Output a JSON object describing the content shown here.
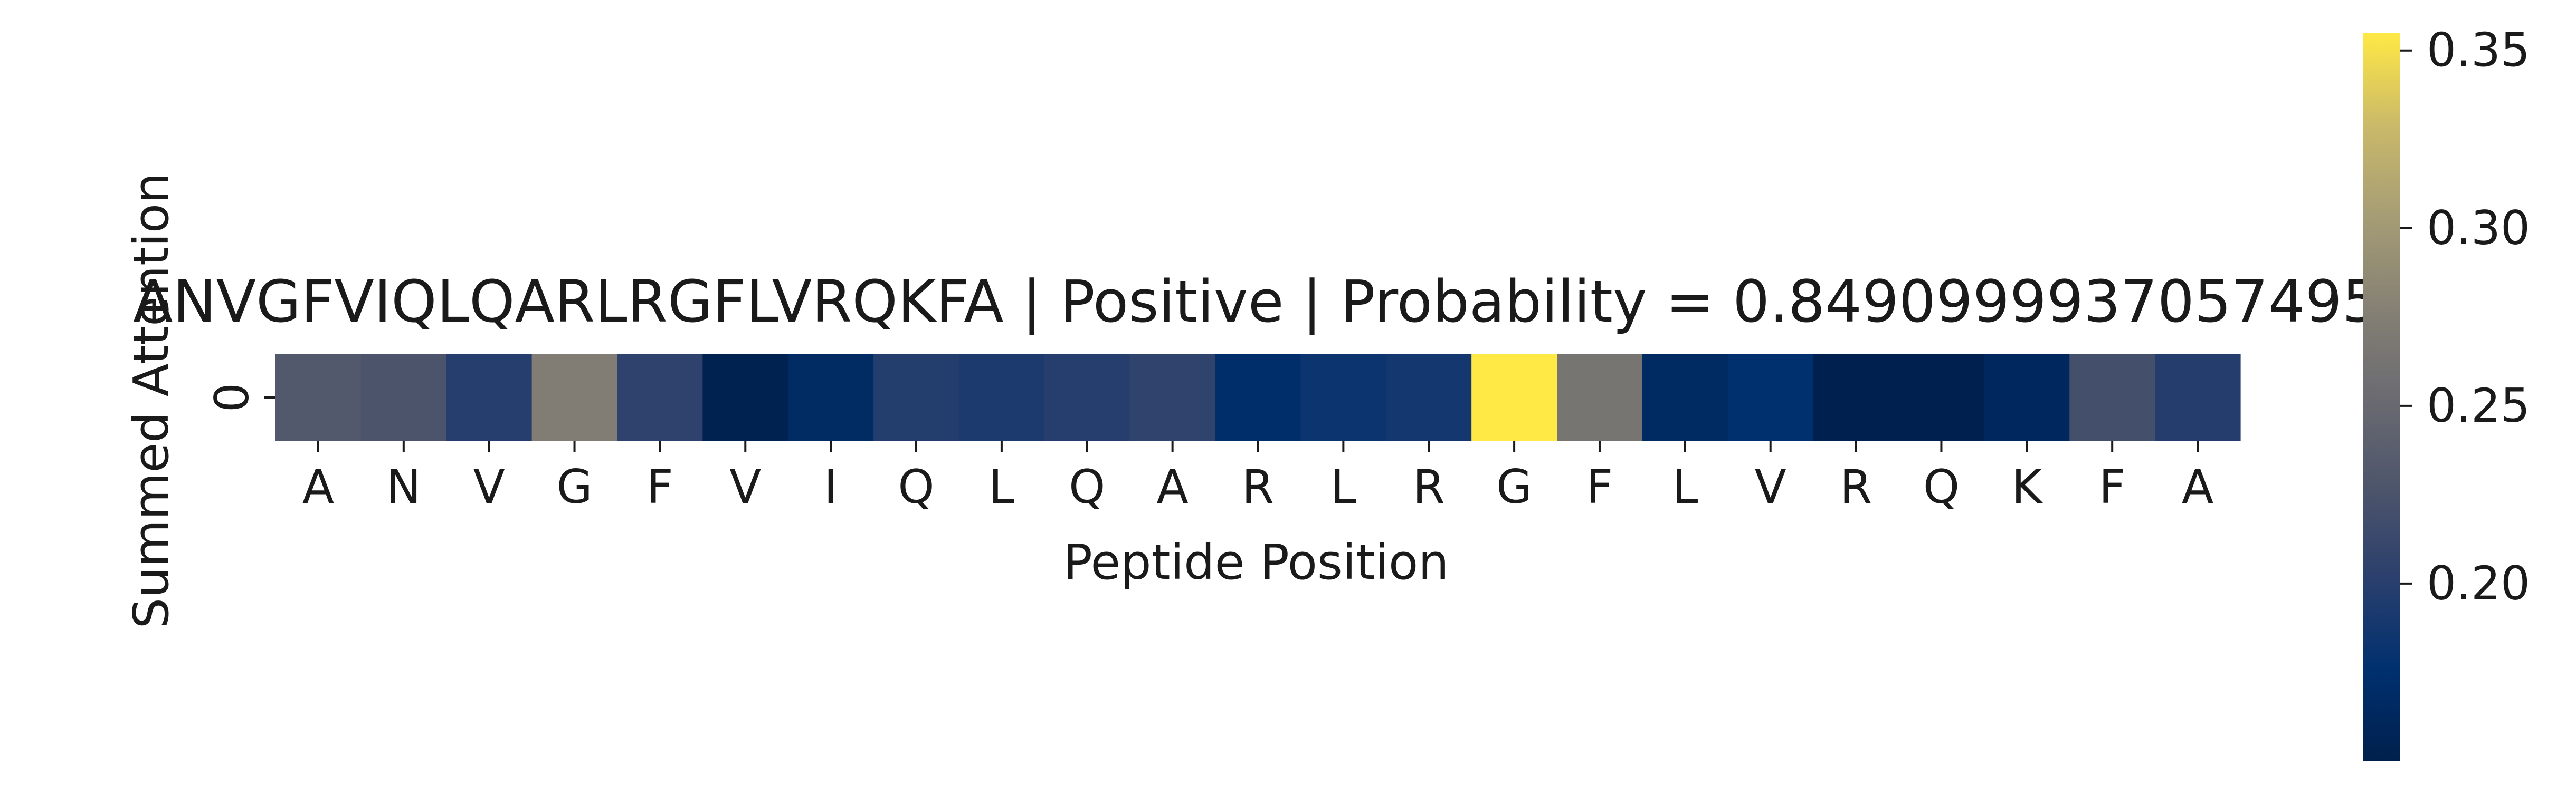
{
  "chart_data": {
    "type": "heatmap",
    "title": "ANVGFVIQLQARLRGFLVRQKFA | Positive | Probability = 0.8490999937057495",
    "xlabel": "Peptide Position",
    "ylabel": "Summed Attention",
    "row_labels": [
      "0"
    ],
    "categories": [
      "A",
      "N",
      "V",
      "G",
      "F",
      "V",
      "I",
      "Q",
      "L",
      "Q",
      "A",
      "R",
      "L",
      "R",
      "G",
      "F",
      "L",
      "V",
      "R",
      "Q",
      "K",
      "F",
      "A"
    ],
    "values": [
      0.232,
      0.226,
      0.199,
      0.274,
      0.205,
      0.153,
      0.167,
      0.197,
      0.193,
      0.199,
      0.206,
      0.173,
      0.183,
      0.187,
      0.355,
      0.264,
      0.166,
      0.175,
      0.152,
      0.152,
      0.163,
      0.22,
      0.198
    ],
    "colormap": "cividis",
    "colorbar": {
      "min": 0.15,
      "max": 0.355,
      "ticks": [
        0.2,
        0.25,
        0.3,
        0.35
      ],
      "tick_labels": [
        "0.20",
        "0.25",
        "0.30",
        "0.35"
      ]
    },
    "grid": false,
    "legend": "right"
  }
}
